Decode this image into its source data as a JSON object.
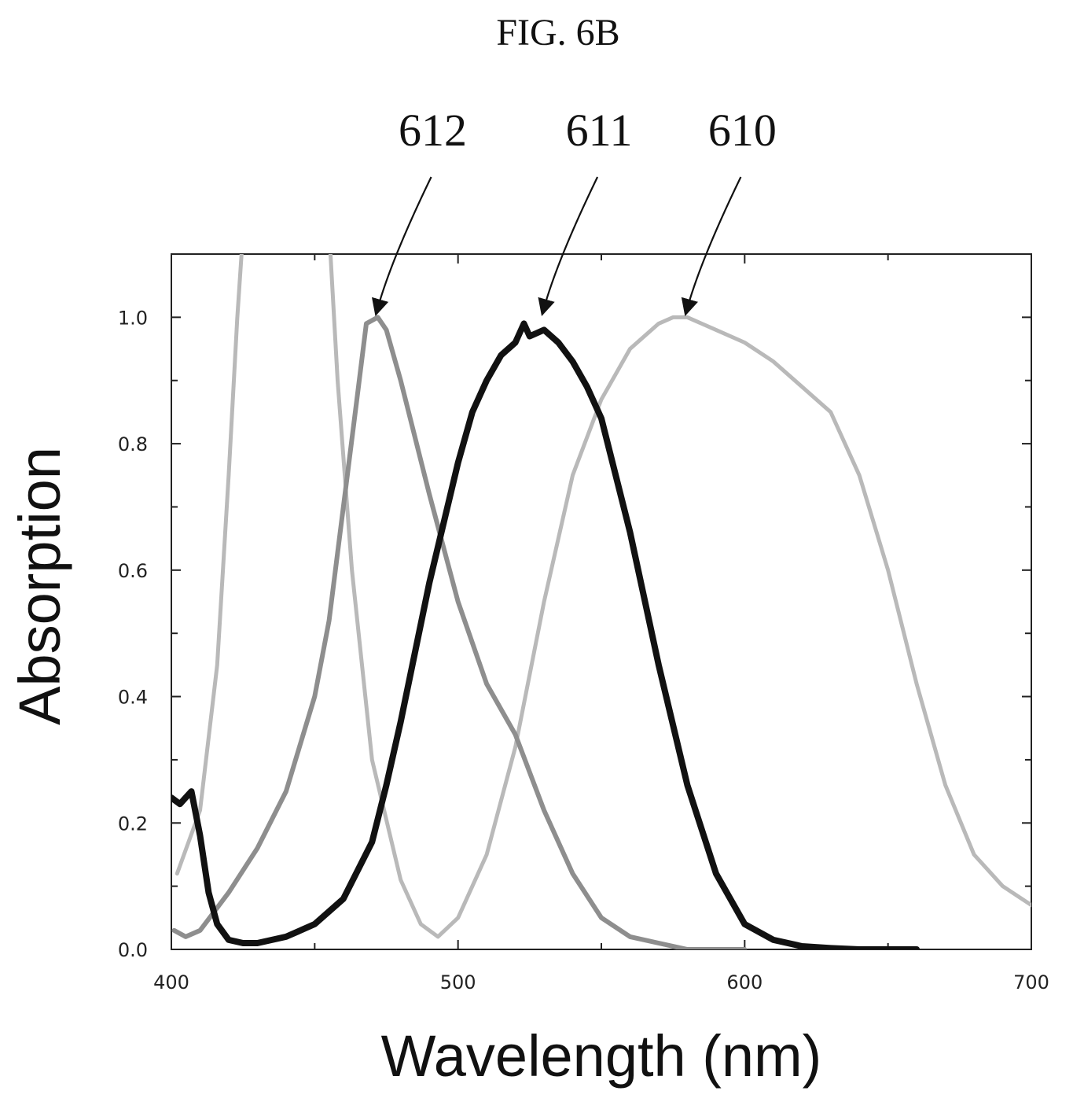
{
  "figure": {
    "title": "FIG. 6B"
  },
  "chart_data": {
    "type": "line",
    "title": "",
    "xlabel": "Wavelength (nm)",
    "ylabel": "Absorption",
    "xlim": [
      400,
      700
    ],
    "ylim": [
      0.0,
      1.1
    ],
    "xticks": [
      400,
      500,
      600,
      700
    ],
    "yticks": [
      0.0,
      0.2,
      0.4,
      0.6,
      0.8,
      1.0
    ],
    "x_tick_labels": [
      "400",
      "500",
      "600",
      "700"
    ],
    "y_tick_labels": [
      "0.0",
      "0.2",
      "0.4",
      "0.6",
      "0.8",
      "1.0"
    ],
    "grid": false,
    "legend": "none",
    "series": [
      {
        "ref": "610",
        "color": "#b9b9b9",
        "width": 5,
        "x": [
          402,
          410,
          416,
          420,
          423,
          424.5
        ],
        "y": [
          0.12,
          0.22,
          0.45,
          0.75,
          1.0,
          1.1
        ]
      },
      {
        "ref": "610",
        "color": "#b9b9b9",
        "width": 5,
        "x": [
          455.5,
          458,
          463,
          470,
          480,
          487,
          493,
          500,
          510,
          520,
          530,
          540,
          550,
          560,
          570,
          575,
          580,
          590,
          600,
          610,
          620,
          630,
          640,
          650,
          660,
          670,
          680,
          690,
          700
        ],
        "y": [
          1.1,
          0.9,
          0.6,
          0.3,
          0.11,
          0.04,
          0.02,
          0.05,
          0.15,
          0.32,
          0.55,
          0.75,
          0.87,
          0.95,
          0.99,
          1.0,
          1.0,
          0.98,
          0.96,
          0.93,
          0.89,
          0.85,
          0.75,
          0.6,
          0.42,
          0.26,
          0.15,
          0.1,
          0.07
        ]
      },
      {
        "ref": "612",
        "color": "#8e8e8e",
        "width": 6,
        "x": [
          401,
          405,
          410,
          415,
          420,
          430,
          440,
          450,
          455,
          460,
          465,
          468,
          472,
          475,
          480,
          490,
          500,
          510,
          520,
          530,
          540,
          550,
          560,
          570,
          580,
          590,
          600
        ],
        "y": [
          0.03,
          0.02,
          0.03,
          0.06,
          0.09,
          0.16,
          0.25,
          0.4,
          0.52,
          0.7,
          0.88,
          0.99,
          1.0,
          0.98,
          0.9,
          0.72,
          0.55,
          0.42,
          0.34,
          0.22,
          0.12,
          0.05,
          0.02,
          0.01,
          0.0,
          0.0,
          0.0
        ]
      },
      {
        "ref": "611",
        "color": "#111111",
        "width": 8,
        "x": [
          400,
          403,
          405,
          407,
          410,
          413,
          416,
          420,
          425,
          430,
          440,
          450,
          460,
          470,
          475,
          480,
          490,
          500,
          505,
          510,
          515,
          520,
          523,
          525,
          530,
          535,
          540,
          545,
          550,
          560,
          570,
          580,
          590,
          600,
          610,
          620,
          630,
          640,
          650,
          660
        ],
        "y": [
          0.24,
          0.23,
          0.24,
          0.25,
          0.18,
          0.09,
          0.04,
          0.015,
          0.01,
          0.01,
          0.02,
          0.04,
          0.08,
          0.17,
          0.26,
          0.36,
          0.58,
          0.77,
          0.85,
          0.9,
          0.94,
          0.96,
          0.99,
          0.97,
          0.98,
          0.96,
          0.93,
          0.89,
          0.84,
          0.66,
          0.45,
          0.26,
          0.12,
          0.04,
          0.015,
          0.005,
          0.002,
          0.0,
          0.0,
          0.0
        ]
      }
    ],
    "annotations": [
      {
        "label": "612",
        "target_x": 472,
        "target_y": 1.0
      },
      {
        "label": "611",
        "target_x": 530,
        "target_y": 1.0
      },
      {
        "label": "610",
        "target_x": 580,
        "target_y": 1.0
      }
    ]
  }
}
